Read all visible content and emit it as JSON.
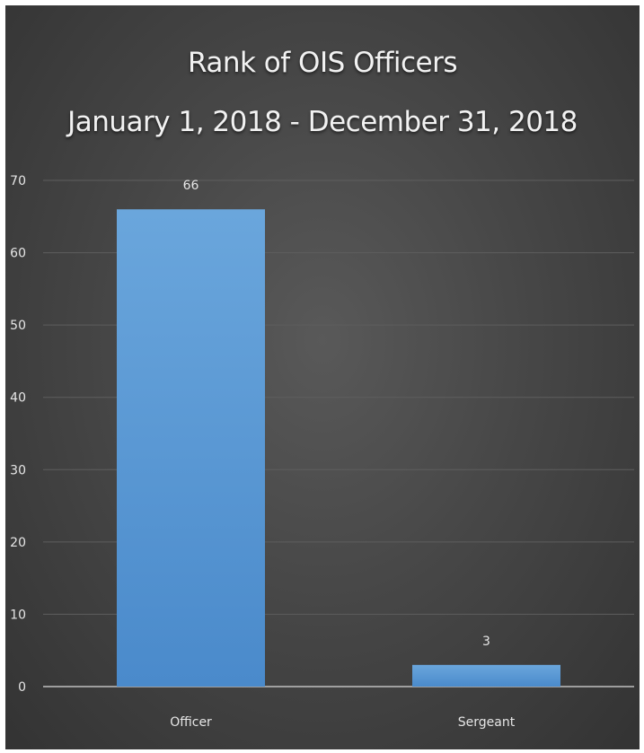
{
  "chart_data": {
    "type": "bar",
    "title": "Rank of OIS Officers",
    "subtitle": "January 1, 2018 - December 31, 2018",
    "categories": [
      "Officer",
      "Sergeant"
    ],
    "values": [
      66,
      3
    ],
    "data_labels": [
      "66",
      "3"
    ],
    "xlabel": "",
    "ylabel": "",
    "ylim": [
      0,
      70
    ],
    "yticks": [
      0,
      10,
      20,
      30,
      40,
      50,
      60,
      70
    ],
    "grid": true,
    "legend": "none",
    "bar_color": "#5b9bd5",
    "background_color": "#404040"
  }
}
